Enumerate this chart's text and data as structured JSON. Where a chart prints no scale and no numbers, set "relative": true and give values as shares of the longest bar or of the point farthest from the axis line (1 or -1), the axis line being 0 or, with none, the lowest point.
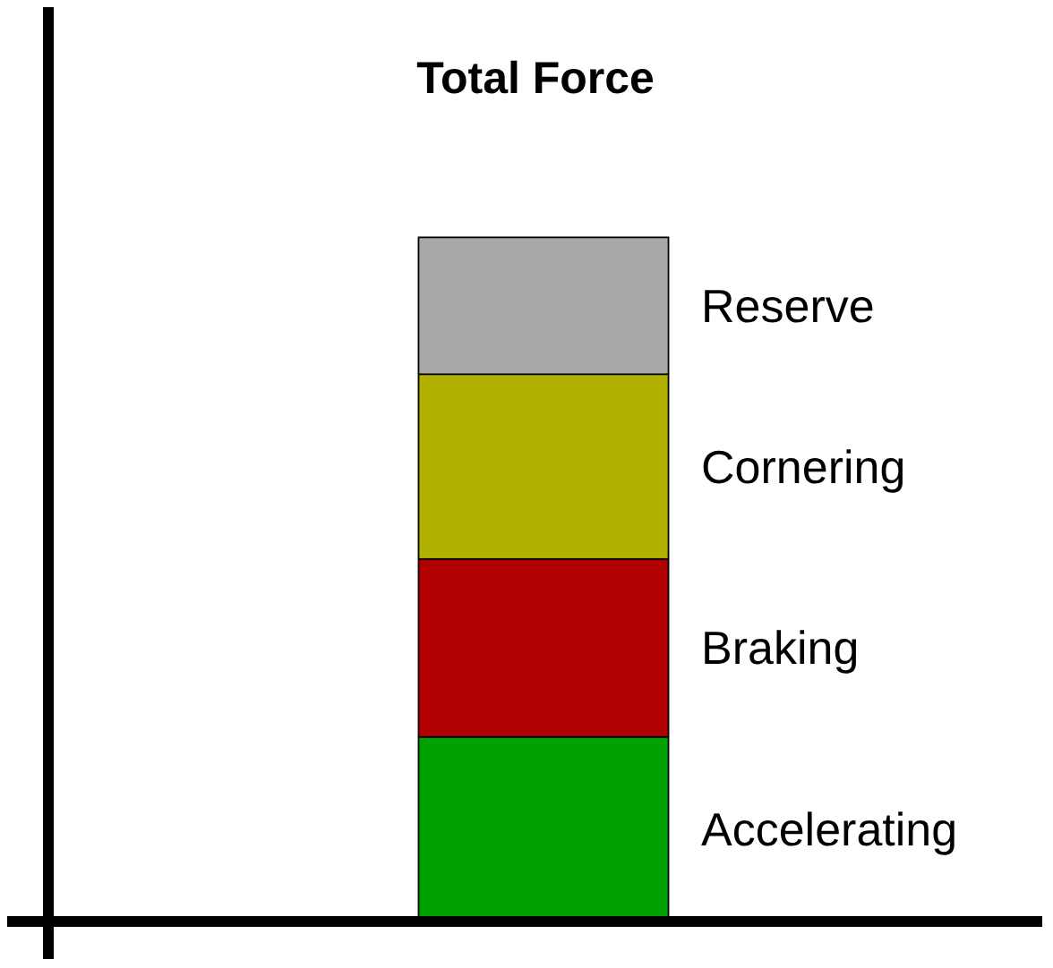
{
  "chart_data": {
    "type": "bar",
    "title": "Total Force",
    "categories": [
      null
    ],
    "stacked": true,
    "relative": true,
    "legend": false,
    "series": [
      {
        "name": "Accelerating",
        "color": "#00a000",
        "values": [
          0.27
        ]
      },
      {
        "name": "Braking",
        "color": "#b00000",
        "values": [
          0.26
        ]
      },
      {
        "name": "Cornering",
        "color": "#b0b000",
        "values": [
          0.27
        ]
      },
      {
        "name": "Reserve",
        "color": "#a8a8a8",
        "values": [
          0.2
        ]
      }
    ]
  }
}
